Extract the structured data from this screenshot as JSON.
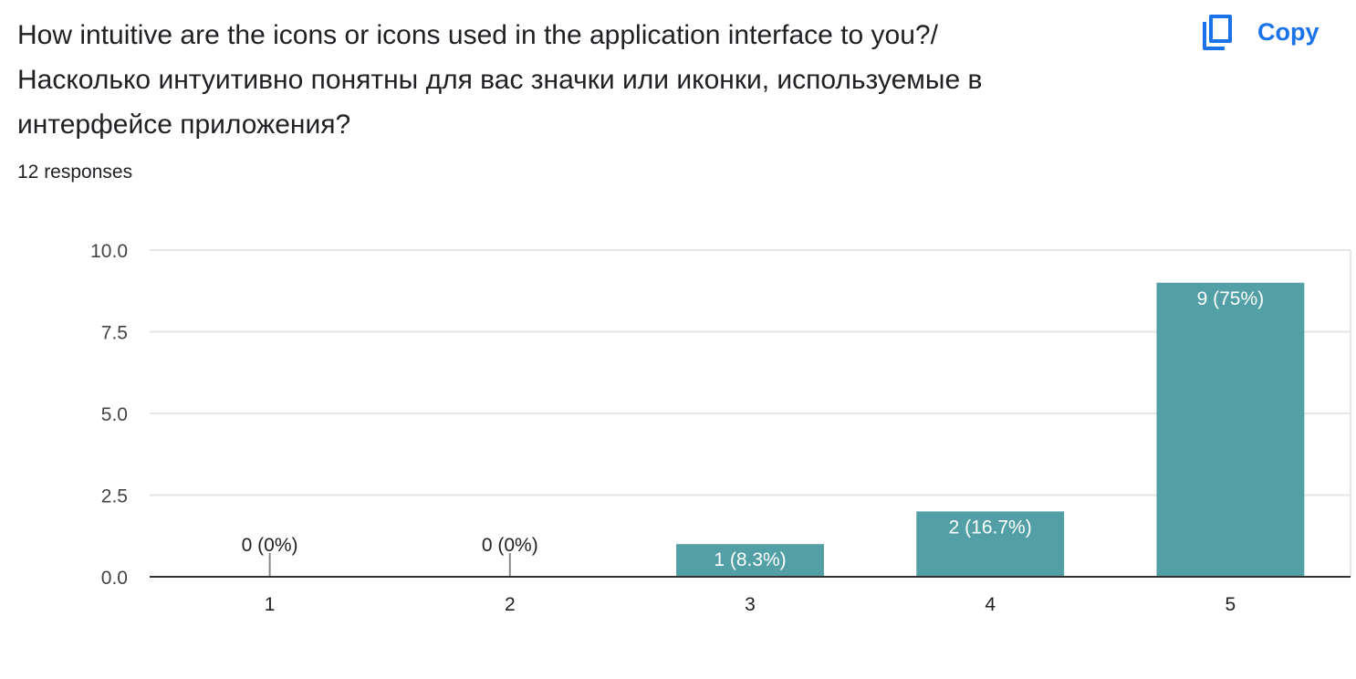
{
  "header": {
    "title_lines": [
      "How intuitive are the icons or icons used in the application interface to you?/",
      "Насколько интуитивно понятны для вас значки или иконки, используемые в",
      "интерфейсе приложения?"
    ],
    "responses": "12 responses"
  },
  "toolbar": {
    "copy_label": "Copy",
    "copy_icon": "copy-icon"
  },
  "colors": {
    "bar": "#52a0a6",
    "accent": "#1a73e8",
    "grid": "#e6e6e6",
    "axis": "#333333"
  },
  "chart_data": {
    "type": "bar",
    "categories": [
      "1",
      "2",
      "3",
      "4",
      "5"
    ],
    "values": [
      0,
      0,
      1,
      2,
      9
    ],
    "data_labels": [
      "0 (0%)",
      "0 (0%)",
      "1 (8.3%)",
      "2 (16.7%)",
      "9 (75%)"
    ],
    "yticks": [
      "0.0",
      "2.5",
      "5.0",
      "7.5",
      "10.0"
    ],
    "ylim": [
      0,
      10
    ],
    "grid": true,
    "legend": false
  }
}
